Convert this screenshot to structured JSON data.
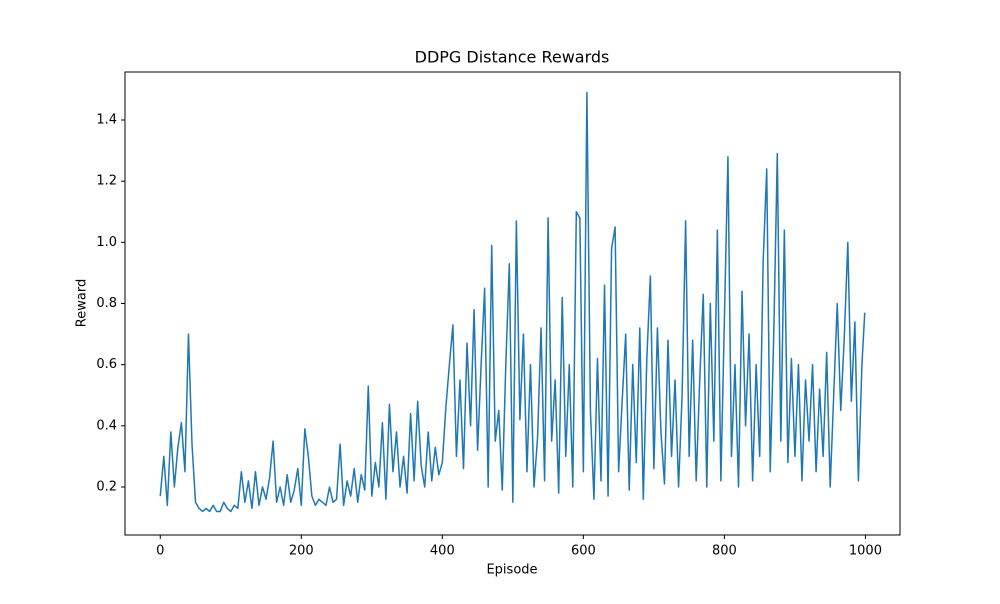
{
  "chart_data": {
    "type": "line",
    "title": "DDPG Distance Rewards",
    "x_label": "Episode",
    "y_label": "Reward",
    "x": [
      0,
      5,
      10,
      15,
      20,
      25,
      30,
      35,
      40,
      45,
      50,
      55,
      60,
      65,
      70,
      75,
      80,
      85,
      90,
      95,
      100,
      105,
      110,
      115,
      120,
      125,
      130,
      135,
      140,
      145,
      150,
      155,
      160,
      165,
      170,
      175,
      180,
      185,
      190,
      195,
      200,
      205,
      210,
      215,
      220,
      225,
      230,
      235,
      240,
      245,
      250,
      255,
      260,
      265,
      270,
      275,
      280,
      285,
      290,
      295,
      300,
      305,
      310,
      315,
      320,
      325,
      330,
      335,
      340,
      345,
      350,
      355,
      360,
      365,
      370,
      375,
      380,
      385,
      390,
      395,
      400,
      405,
      410,
      415,
      420,
      425,
      430,
      435,
      440,
      445,
      450,
      455,
      460,
      465,
      470,
      475,
      480,
      485,
      490,
      495,
      500,
      505,
      510,
      515,
      520,
      525,
      530,
      535,
      540,
      545,
      550,
      555,
      560,
      565,
      570,
      575,
      580,
      585,
      590,
      595,
      600,
      605,
      610,
      615,
      620,
      625,
      630,
      635,
      640,
      645,
      650,
      655,
      660,
      665,
      670,
      675,
      680,
      685,
      690,
      695,
      700,
      705,
      710,
      715,
      720,
      725,
      730,
      735,
      740,
      745,
      750,
      755,
      760,
      765,
      770,
      775,
      780,
      785,
      790,
      795,
      800,
      805,
      810,
      815,
      820,
      825,
      830,
      835,
      840,
      845,
      850,
      855,
      860,
      865,
      870,
      875,
      880,
      885,
      890,
      895,
      900,
      905,
      910,
      915,
      920,
      925,
      930,
      935,
      940,
      945,
      950,
      955,
      960,
      965,
      970,
      975,
      980,
      985,
      990,
      995,
      999
    ],
    "series": [
      {
        "name": "Reward",
        "color": "#1f77b4",
        "values": [
          0.17,
          0.3,
          0.14,
          0.38,
          0.2,
          0.33,
          0.41,
          0.25,
          0.7,
          0.34,
          0.15,
          0.13,
          0.12,
          0.13,
          0.12,
          0.14,
          0.12,
          0.12,
          0.15,
          0.13,
          0.12,
          0.14,
          0.13,
          0.25,
          0.15,
          0.22,
          0.13,
          0.25,
          0.14,
          0.2,
          0.16,
          0.23,
          0.35,
          0.15,
          0.2,
          0.14,
          0.24,
          0.15,
          0.19,
          0.26,
          0.14,
          0.39,
          0.3,
          0.17,
          0.14,
          0.16,
          0.15,
          0.14,
          0.2,
          0.15,
          0.16,
          0.34,
          0.14,
          0.22,
          0.17,
          0.26,
          0.15,
          0.24,
          0.19,
          0.53,
          0.17,
          0.28,
          0.2,
          0.41,
          0.16,
          0.47,
          0.25,
          0.38,
          0.2,
          0.3,
          0.18,
          0.44,
          0.22,
          0.48,
          0.27,
          0.2,
          0.38,
          0.22,
          0.33,
          0.24,
          0.28,
          0.46,
          0.6,
          0.73,
          0.3,
          0.55,
          0.26,
          0.67,
          0.4,
          0.78,
          0.32,
          0.6,
          0.85,
          0.2,
          0.99,
          0.35,
          0.45,
          0.19,
          0.6,
          0.93,
          0.15,
          1.07,
          0.42,
          0.7,
          0.25,
          0.6,
          0.2,
          0.36,
          0.72,
          0.22,
          1.08,
          0.35,
          0.55,
          0.18,
          0.82,
          0.3,
          0.6,
          0.2,
          1.1,
          1.08,
          0.25,
          1.49,
          0.45,
          0.16,
          0.62,
          0.22,
          0.86,
          0.17,
          0.98,
          1.05,
          0.25,
          0.48,
          0.7,
          0.19,
          0.6,
          0.28,
          0.72,
          0.16,
          0.62,
          0.89,
          0.26,
          0.72,
          0.38,
          0.21,
          0.68,
          0.3,
          0.55,
          0.2,
          0.5,
          1.07,
          0.3,
          0.68,
          0.22,
          0.55,
          0.83,
          0.2,
          0.8,
          0.35,
          1.04,
          0.22,
          0.75,
          1.28,
          0.3,
          0.6,
          0.2,
          0.84,
          0.4,
          0.7,
          0.22,
          0.6,
          0.3,
          0.94,
          1.24,
          0.25,
          0.7,
          1.29,
          0.35,
          1.04,
          0.28,
          0.62,
          0.3,
          0.6,
          0.22,
          0.55,
          0.35,
          0.6,
          0.25,
          0.52,
          0.3,
          0.64,
          0.2,
          0.5,
          0.8,
          0.45,
          0.69,
          1.0,
          0.48,
          0.74,
          0.22,
          0.6,
          0.77
        ]
      }
    ],
    "xlim": [
      -50,
      1049
    ],
    "xticks": [
      0,
      200,
      400,
      600,
      800,
      1000
    ],
    "ylim": [
      0.043,
      1.557
    ],
    "yticks": [
      0.2,
      0.4,
      0.6,
      0.8,
      {
        "value": 1,
        "label": "1.0"
      },
      1.2,
      1.4
    ],
    "grid": false
  }
}
